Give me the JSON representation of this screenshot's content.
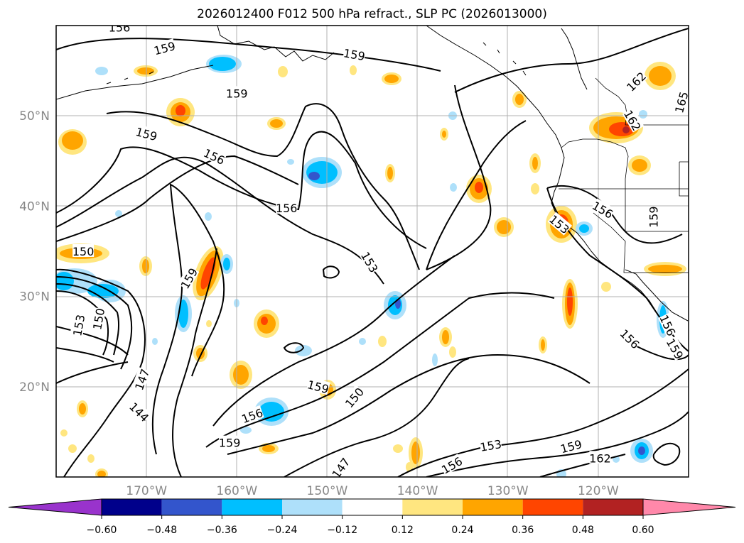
{
  "title": "2026012400 F012 500 hPa refract., SLP PC (2026013000)",
  "map": {
    "lon_range": [
      -180,
      -110
    ],
    "lat_range": [
      10,
      60
    ],
    "lat_ticks": [
      {
        "value": 50,
        "label": "50°N"
      },
      {
        "value": 40,
        "label": "40°N"
      },
      {
        "value": 30,
        "label": "30°N"
      },
      {
        "value": 20,
        "label": "20°N"
      }
    ],
    "lon_ticks": [
      {
        "value": -170,
        "label": "170°W"
      },
      {
        "value": -160,
        "label": "160°W"
      },
      {
        "value": -150,
        "label": "150°W"
      },
      {
        "value": -140,
        "label": "140°W"
      },
      {
        "value": -130,
        "label": "130°W"
      },
      {
        "value": -120,
        "label": "120°W"
      }
    ],
    "grid": true,
    "contour_labels": [
      {
        "text": "156",
        "lon": -173,
        "lat": 59.8,
        "rot": 0
      },
      {
        "text": "159",
        "lon": -168,
        "lat": 57.5,
        "rot": -15
      },
      {
        "text": "159",
        "lon": -147,
        "lat": 56.8,
        "rot": 10
      },
      {
        "text": "159",
        "lon": -160,
        "lat": 52.5,
        "rot": 0
      },
      {
        "text": "162",
        "lon": -115.8,
        "lat": 53.8,
        "rot": -45
      },
      {
        "text": "165",
        "lon": -110.8,
        "lat": 51.5,
        "rot": -75
      },
      {
        "text": "162",
        "lon": -116.2,
        "lat": 49.5,
        "rot": 60
      },
      {
        "text": "159",
        "lon": -170,
        "lat": 48,
        "rot": 15
      },
      {
        "text": "156",
        "lon": -162.5,
        "lat": 45.5,
        "rot": 25
      },
      {
        "text": "156",
        "lon": -154.5,
        "lat": 39.8,
        "rot": 0
      },
      {
        "text": "153",
        "lon": -124.3,
        "lat": 38,
        "rot": 40
      },
      {
        "text": "156",
        "lon": -119.5,
        "lat": 39.6,
        "rot": 30
      },
      {
        "text": "159",
        "lon": -113.9,
        "lat": 38.8,
        "rot": -90
      },
      {
        "text": "150",
        "lon": -177,
        "lat": 35,
        "rot": 0
      },
      {
        "text": "153",
        "lon": -145.3,
        "lat": 33.8,
        "rot": 60
      },
      {
        "text": "159",
        "lon": -165.3,
        "lat": 32,
        "rot": -60
      },
      {
        "text": "156",
        "lon": -112.3,
        "lat": 26.8,
        "rot": 65
      },
      {
        "text": "159",
        "lon": -111.5,
        "lat": 24.2,
        "rot": 60
      },
      {
        "text": "153",
        "lon": -177.5,
        "lat": 26.8,
        "rot": -80
      },
      {
        "text": "150",
        "lon": -175.3,
        "lat": 27.5,
        "rot": -80
      },
      {
        "text": "156",
        "lon": -116.5,
        "lat": 25.3,
        "rot": 45
      },
      {
        "text": "147",
        "lon": -170.5,
        "lat": 20.8,
        "rot": -70
      },
      {
        "text": "159",
        "lon": -151,
        "lat": 20,
        "rot": 15
      },
      {
        "text": "150",
        "lon": -147,
        "lat": 18.8,
        "rot": -50
      },
      {
        "text": "144",
        "lon": -170.8,
        "lat": 17.2,
        "rot": 45
      },
      {
        "text": "156",
        "lon": -158.3,
        "lat": 16.8,
        "rot": -20
      },
      {
        "text": "159",
        "lon": -160.8,
        "lat": 13.8,
        "rot": 0
      },
      {
        "text": "153",
        "lon": -131.9,
        "lat": 13.5,
        "rot": -10
      },
      {
        "text": "159",
        "lon": -123,
        "lat": 13.4,
        "rot": -15
      },
      {
        "text": "162",
        "lon": -119.8,
        "lat": 12.1,
        "rot": 0
      },
      {
        "text": "147",
        "lon": -148.5,
        "lat": 11,
        "rot": -55
      },
      {
        "text": "156",
        "lon": -136.2,
        "lat": 11.3,
        "rot": -30
      }
    ]
  },
  "colorbar": {
    "boundaries": [
      -0.72,
      -0.6,
      -0.48,
      -0.36,
      -0.24,
      -0.12,
      0.12,
      0.24,
      0.36,
      0.48,
      0.6,
      0.72
    ],
    "colors": [
      "#9933cc",
      "#00008b",
      "#3355cc",
      "#00bfff",
      "#aee0fa",
      "#ffffff",
      "#ffe680",
      "#ffa500",
      "#ff4500",
      "#b22222",
      "#ff88aa"
    ],
    "labels": [
      "−0.60",
      "−0.48",
      "−0.36",
      "−0.24",
      "−0.12",
      "0.12",
      "0.24",
      "0.36",
      "0.48",
      "0.60"
    ],
    "extend": "both"
  }
}
